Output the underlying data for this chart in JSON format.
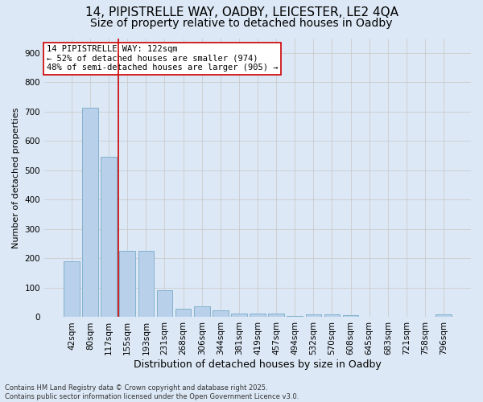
{
  "title_line1": "14, PIPISTRELLE WAY, OADBY, LEICESTER, LE2 4QA",
  "title_line2": "Size of property relative to detached houses in Oadby",
  "xlabel": "Distribution of detached houses by size in Oadby",
  "ylabel": "Number of detached properties",
  "footer_line1": "Contains HM Land Registry data © Crown copyright and database right 2025.",
  "footer_line2": "Contains public sector information licensed under the Open Government Licence v3.0.",
  "categories": [
    "42sqm",
    "80sqm",
    "117sqm",
    "155sqm",
    "193sqm",
    "231sqm",
    "268sqm",
    "306sqm",
    "344sqm",
    "381sqm",
    "419sqm",
    "457sqm",
    "494sqm",
    "532sqm",
    "570sqm",
    "608sqm",
    "645sqm",
    "683sqm",
    "721sqm",
    "758sqm",
    "796sqm"
  ],
  "values": [
    190,
    712,
    545,
    225,
    225,
    92,
    28,
    38,
    24,
    13,
    12,
    12,
    5,
    9,
    9,
    6,
    0,
    0,
    0,
    0,
    10
  ],
  "bar_color": "#b8d0ea",
  "bar_edge_color": "#7aaac8",
  "vline_color": "#cc0000",
  "annotation_text": "14 PIPISTRELLE WAY: 122sqm\n← 52% of detached houses are smaller (974)\n48% of semi-detached houses are larger (905) →",
  "annotation_box_color": "#cc0000",
  "annotation_fill": "#ffffff",
  "ylim": [
    0,
    950
  ],
  "yticks": [
    0,
    100,
    200,
    300,
    400,
    500,
    600,
    700,
    800,
    900
  ],
  "grid_color": "#cccccc",
  "bg_color": "#dce8f5",
  "fig_bg_color": "#dce8f5",
  "title_fontsize": 11,
  "subtitle_fontsize": 10,
  "tick_fontsize": 7.5,
  "xlabel_fontsize": 9,
  "ylabel_fontsize": 8,
  "footer_fontsize": 6,
  "annot_fontsize": 7.5
}
